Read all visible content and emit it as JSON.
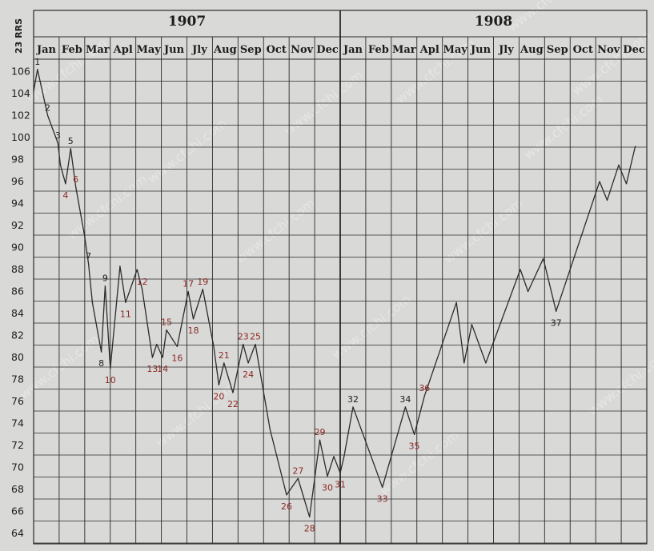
{
  "chart_data": {
    "type": "line",
    "ylabel": "23 RRS",
    "ylim": [
      64,
      107
    ],
    "yticks": [
      106,
      104,
      102,
      100,
      98,
      96,
      94,
      92,
      90,
      88,
      86,
      84,
      82,
      80,
      78,
      76,
      74,
      72,
      70,
      68,
      66,
      64
    ],
    "years": [
      "1907",
      "1908"
    ],
    "months": [
      "Jan",
      "Feb",
      "Mar",
      "Apl",
      "May",
      "Jun",
      "Jly",
      "Aug",
      "Sep",
      "Oct",
      "Nov",
      "Dec",
      "Jan",
      "Feb",
      "Mar",
      "Apl",
      "May",
      "Jun",
      "Jly",
      "Aug",
      "Sep",
      "Oct",
      "Nov",
      "Dec"
    ],
    "grid": true,
    "series": [
      {
        "points": [
          {
            "x": 0.0,
            "y": 104.2
          },
          {
            "x": 0.15,
            "y": 106.2,
            "label": "1"
          },
          {
            "x": 0.55,
            "y": 102.0,
            "label": "2"
          },
          {
            "x": 0.95,
            "y": 99.5,
            "label": "3"
          },
          {
            "x": 1.05,
            "y": 97.5
          },
          {
            "x": 1.25,
            "y": 95.8,
            "label": "4"
          },
          {
            "x": 1.45,
            "y": 99.0,
            "label": "5"
          },
          {
            "x": 1.65,
            "y": 95.5,
            "label": "6"
          },
          {
            "x": 2.0,
            "y": 91.0
          },
          {
            "x": 2.15,
            "y": 88.5,
            "label": "7"
          },
          {
            "x": 2.3,
            "y": 85.0
          },
          {
            "x": 2.65,
            "y": 80.5,
            "label": "8"
          },
          {
            "x": 2.8,
            "y": 86.5,
            "label": "9"
          },
          {
            "x": 3.0,
            "y": 79.0,
            "label": "10"
          },
          {
            "x": 3.38,
            "y": 88.3
          },
          {
            "x": 3.6,
            "y": 85.0,
            "label": "11"
          },
          {
            "x": 4.05,
            "y": 88.0
          },
          {
            "x": 4.25,
            "y": 86.2,
            "label": "12"
          },
          {
            "x": 4.65,
            "y": 80.0,
            "label": "13"
          },
          {
            "x": 4.82,
            "y": 81.2
          },
          {
            "x": 5.05,
            "y": 80.0,
            "label": "14"
          },
          {
            "x": 5.2,
            "y": 82.5,
            "label": "15"
          },
          {
            "x": 5.62,
            "y": 81.0,
            "label": "16"
          },
          {
            "x": 6.05,
            "y": 86.0,
            "label": "17"
          },
          {
            "x": 6.25,
            "y": 83.5,
            "label": "18"
          },
          {
            "x": 6.62,
            "y": 86.2,
            "label": "19"
          },
          {
            "x": 7.05,
            "y": 81.0
          },
          {
            "x": 7.25,
            "y": 77.5,
            "label": "20"
          },
          {
            "x": 7.45,
            "y": 79.5,
            "label": "21"
          },
          {
            "x": 7.8,
            "y": 76.8,
            "label": "22"
          },
          {
            "x": 8.2,
            "y": 81.2,
            "label": "23"
          },
          {
            "x": 8.4,
            "y": 79.5,
            "label": "24"
          },
          {
            "x": 8.68,
            "y": 81.2,
            "label": "25"
          },
          {
            "x": 9.25,
            "y": 73.5
          },
          {
            "x": 9.9,
            "y": 67.5,
            "label": "26"
          },
          {
            "x": 10.35,
            "y": 69.0,
            "label": "27"
          },
          {
            "x": 10.8,
            "y": 65.5,
            "label": "28"
          },
          {
            "x": 11.2,
            "y": 72.5,
            "label": "29"
          },
          {
            "x": 11.5,
            "y": 69.2,
            "label": "30"
          },
          {
            "x": 11.75,
            "y": 71.0
          },
          {
            "x": 12.0,
            "y": 69.5,
            "label": "31"
          },
          {
            "x": 12.15,
            "y": 71.0
          },
          {
            "x": 12.5,
            "y": 75.5,
            "label": "32"
          },
          {
            "x": 13.65,
            "y": 68.2,
            "label": "33"
          },
          {
            "x": 14.55,
            "y": 75.5,
            "label": "34"
          },
          {
            "x": 14.9,
            "y": 73.0,
            "label": "35"
          },
          {
            "x": 15.3,
            "y": 76.5,
            "label": "36"
          },
          {
            "x": 16.55,
            "y": 85.0
          },
          {
            "x": 16.85,
            "y": 79.5
          },
          {
            "x": 17.15,
            "y": 83.0
          },
          {
            "x": 17.7,
            "y": 79.5
          },
          {
            "x": 19.05,
            "y": 88.0
          },
          {
            "x": 19.35,
            "y": 86.0
          },
          {
            "x": 19.95,
            "y": 89.0
          },
          {
            "x": 20.45,
            "y": 84.2,
            "label": "37"
          },
          {
            "x": 22.15,
            "y": 96.0
          },
          {
            "x": 22.45,
            "y": 94.3
          },
          {
            "x": 22.9,
            "y": 97.5
          },
          {
            "x": 23.2,
            "y": 95.8
          },
          {
            "x": 23.55,
            "y": 99.2
          }
        ]
      }
    ],
    "label_colors": {
      "red": "#8b2a26",
      "black": "#1d1d1d"
    },
    "red_labels": [
      "4",
      "6",
      "10",
      "11",
      "12",
      "13",
      "14",
      "15",
      "16",
      "17",
      "18",
      "19",
      "20",
      "21",
      "22",
      "23",
      "24",
      "25",
      "26",
      "27",
      "28",
      "29",
      "30",
      "31",
      "33",
      "35",
      "36"
    ],
    "watermark": "www.cfchi.com"
  }
}
